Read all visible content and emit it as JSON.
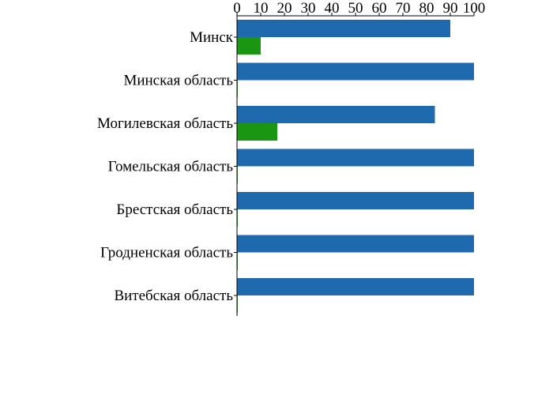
{
  "chart_data": {
    "type": "bar",
    "orientation": "horizontal",
    "title": "",
    "xlabel": "",
    "ylabel": "",
    "xlim": [
      0,
      100
    ],
    "x_ticks": [
      0,
      10,
      20,
      30,
      40,
      50,
      60,
      70,
      80,
      90,
      100
    ],
    "x_axis_position": "top",
    "grid": false,
    "legend": null,
    "categories": [
      "Минск",
      "Минская область",
      "Могилевская область",
      "Гомельская область",
      "Брестская область",
      "Гродненская область",
      "Витебская область"
    ],
    "series": [
      {
        "color": "#1f69ae",
        "values": [
          90,
          100,
          83.5,
          100,
          100,
          100,
          100
        ]
      },
      {
        "color": "#1a9612",
        "values": [
          10,
          0.3,
          17,
          0.3,
          0.3,
          0.3,
          0.3
        ]
      }
    ]
  }
}
